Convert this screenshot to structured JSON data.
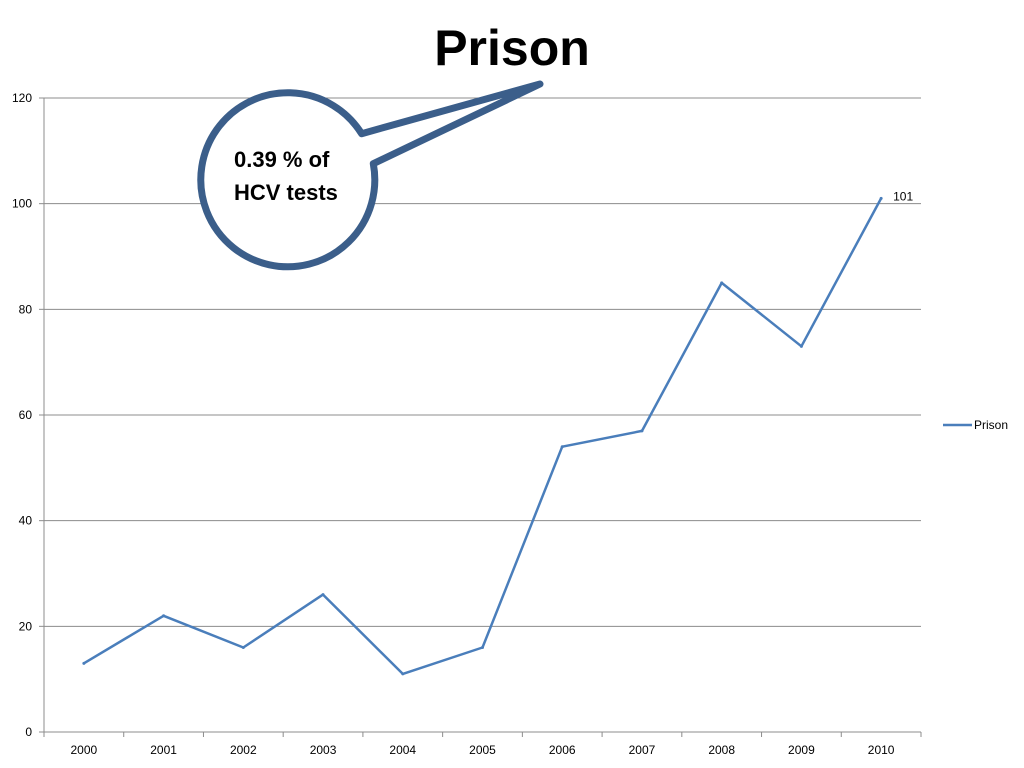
{
  "chart_data": {
    "type": "line",
    "title": "Prison",
    "categories": [
      "2000",
      "2001",
      "2002",
      "2003",
      "2004",
      "2005",
      "2006",
      "2007",
      "2008",
      "2009",
      "2010"
    ],
    "series": [
      {
        "name": "Prison",
        "color": "#4a7ebb",
        "values": [
          13,
          22,
          16,
          26,
          11,
          16,
          54,
          57,
          85,
          73,
          101
        ]
      }
    ],
    "data_labels": [
      {
        "index": 10,
        "text": "101"
      }
    ],
    "y_ticks": [
      "0",
      "20",
      "40",
      "60",
      "80",
      "100",
      "120"
    ],
    "ylim": [
      0,
      120
    ],
    "grid": true,
    "legend_position": "right",
    "callout": {
      "lines": [
        "0.39 % of",
        "HCV tests"
      ],
      "border_color": "#3b5e8a"
    }
  }
}
